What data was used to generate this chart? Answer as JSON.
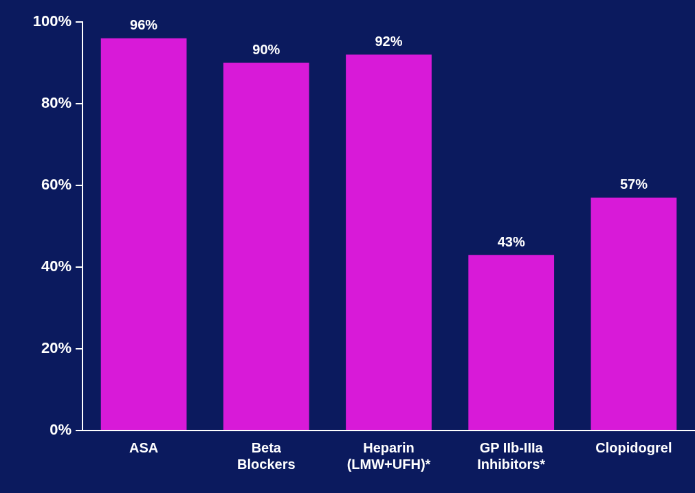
{
  "chart_data": {
    "type": "bar",
    "categories": [
      "ASA",
      "Beta Blockers",
      "Heparin (LMW+UFH)*",
      "GP IIb-IIIa Inhibitors*",
      "Clopidogrel"
    ],
    "values": [
      96,
      90,
      92,
      43,
      57
    ],
    "value_labels": [
      "96%",
      "90%",
      "92%",
      "43%",
      "57%"
    ],
    "color": "#d81ad8",
    "ylim": [
      0,
      100
    ],
    "yticks": [
      {
        "value": 0,
        "label": "0%"
      },
      {
        "value": 20,
        "label": "20%"
      },
      {
        "value": 40,
        "label": "40%"
      },
      {
        "value": 60,
        "label": "60%"
      },
      {
        "value": 80,
        "label": "80%"
      },
      {
        "value": 100,
        "label": "100%"
      }
    ],
    "grid": false,
    "legend": false
  }
}
